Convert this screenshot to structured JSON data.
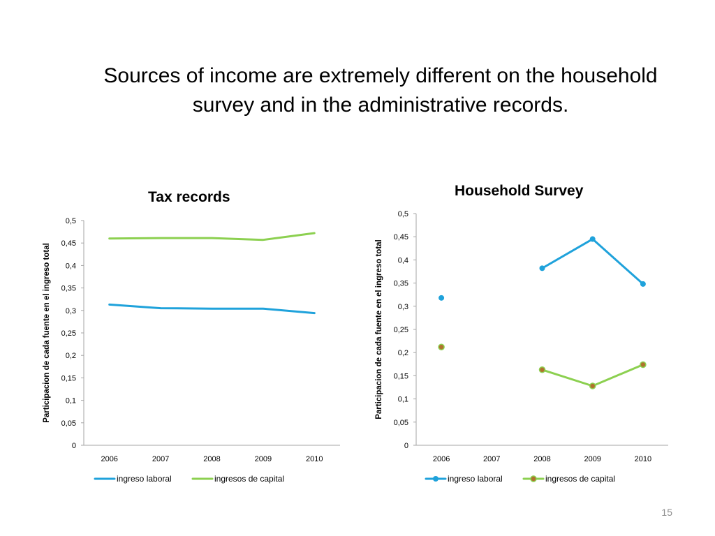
{
  "slide": {
    "title_lines": [
      "Sources of income are extremely different on the household",
      "survey and in the administrative records."
    ],
    "page_number": "15"
  },
  "colors": {
    "ingreso_laboral": "#1fa2db",
    "ingresos_de_capital": "#8cd050",
    "capital_marker_fill": "#b0722e",
    "axis": "#a6a6a6"
  },
  "chart_data": [
    {
      "type": "line",
      "title": "Tax records",
      "xlabel": "",
      "ylabel": "Participacion de cada fuente en el ingreso total",
      "categories": [
        "2006",
        "2007",
        "2008",
        "2009",
        "2010"
      ],
      "ylim": [
        0,
        0.5
      ],
      "yticks": [
        "0",
        "0,05",
        "0,1",
        "0,15",
        "0,2",
        "0,25",
        "0,3",
        "0,35",
        "0,4",
        "0,45",
        "0,5"
      ],
      "markers": false,
      "grid": false,
      "legend": "bottom",
      "series": [
        {
          "name": "ingreso laboral",
          "values": [
            0.313,
            0.305,
            0.304,
            0.304,
            0.294
          ]
        },
        {
          "name": "ingresos de capital",
          "values": [
            0.46,
            0.461,
            0.461,
            0.457,
            0.472
          ]
        }
      ]
    },
    {
      "type": "line",
      "title": "Household Survey",
      "xlabel": "",
      "ylabel": "Participacion de cada fuente en el ingreso total",
      "categories": [
        "2006",
        "2007",
        "2008",
        "2009",
        "2010"
      ],
      "ylim": [
        0,
        0.5
      ],
      "yticks": [
        "0",
        "0,05",
        "0,1",
        "0,15",
        "0,2",
        "0,25",
        "0,3",
        "0,35",
        "0,4",
        "0,45",
        "0,5"
      ],
      "markers": true,
      "grid": false,
      "legend": "bottom",
      "series": [
        {
          "name": "ingreso laboral",
          "values": [
            0.318,
            null,
            0.382,
            0.445,
            0.348
          ]
        },
        {
          "name": "ingresos de capital",
          "values": [
            0.212,
            null,
            0.163,
            0.128,
            0.174
          ]
        }
      ]
    }
  ]
}
